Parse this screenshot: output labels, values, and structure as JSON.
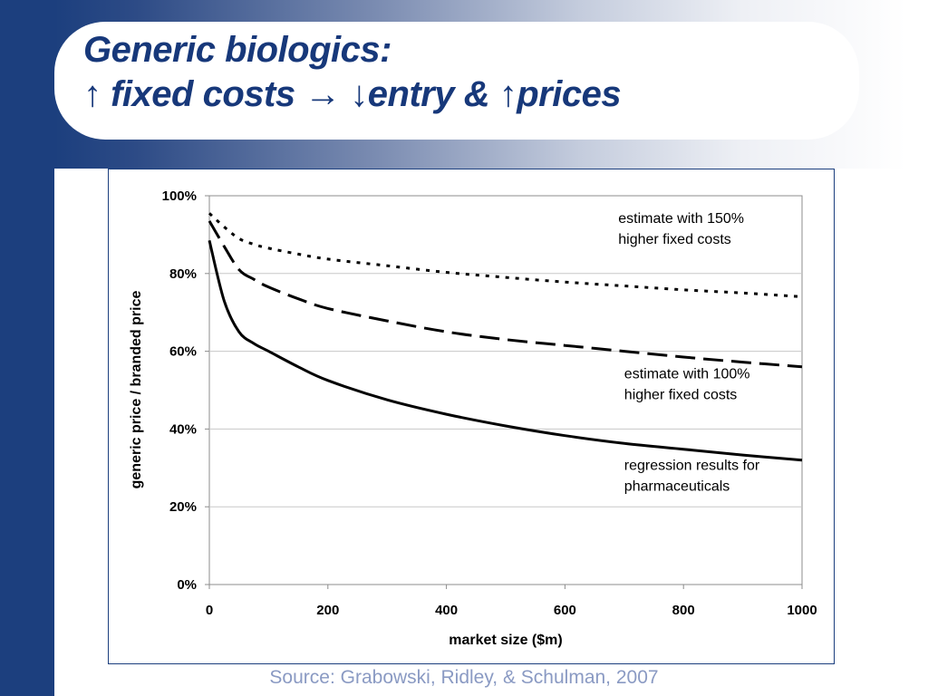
{
  "slide": {
    "title_line_1": "Generic biologics:",
    "title_line_2": "↑ fixed costs → ↓entry & ↑prices",
    "source": "Source: Grabowski, Ridley, & Schulman, 2007",
    "colors": {
      "sidebar": "#1c3f7e",
      "title_text": "#17387a",
      "source_text": "#8a9ac3"
    }
  },
  "chart_data": {
    "type": "line",
    "title": "",
    "xlabel": "market size ($m)",
    "ylabel": "generic price / branded price",
    "xlim": [
      0,
      1000
    ],
    "ylim": [
      0,
      100
    ],
    "x_ticks": [
      "0",
      "200",
      "400",
      "600",
      "800",
      "1000"
    ],
    "y_ticks": [
      "0%",
      "20%",
      "40%",
      "60%",
      "80%",
      "100%"
    ],
    "grid": "horizontal",
    "series": [
      {
        "style": "dotted",
        "x": [
          0,
          25,
          50,
          75,
          100,
          150,
          200,
          300,
          400,
          500,
          600,
          700,
          800,
          900,
          1000
        ],
        "y": [
          95.5,
          92,
          89,
          87.5,
          86.5,
          85,
          83.7,
          82,
          80.3,
          79,
          77.8,
          76.8,
          75.8,
          75,
          74
        ]
      },
      {
        "style": "dashed",
        "x": [
          0,
          25,
          50,
          75,
          100,
          150,
          200,
          300,
          400,
          500,
          600,
          700,
          800,
          900,
          1000
        ],
        "y": [
          93.5,
          87,
          81,
          78.5,
          76.5,
          73.5,
          71,
          67.8,
          65,
          63,
          61.5,
          60,
          58.5,
          57.2,
          56
        ]
      },
      {
        "style": "solid",
        "x": [
          0,
          25,
          50,
          75,
          100,
          150,
          200,
          300,
          400,
          500,
          600,
          700,
          800,
          900,
          1000
        ],
        "y": [
          88.5,
          73,
          65,
          62,
          60,
          56,
          52.5,
          47.5,
          43.8,
          40.8,
          38.3,
          36.3,
          34.8,
          33.3,
          32
        ]
      }
    ],
    "annotations": [
      {
        "lines": [
          "estimate with 150%",
          "higher fixed costs"
        ],
        "x": 690,
        "y": 93
      },
      {
        "lines": [
          "estimate with 100%",
          "higher fixed costs"
        ],
        "x": 700,
        "y": 53
      },
      {
        "lines": [
          "regression results for",
          "pharmaceuticals"
        ],
        "x": 700,
        "y": 29.5
      }
    ]
  }
}
